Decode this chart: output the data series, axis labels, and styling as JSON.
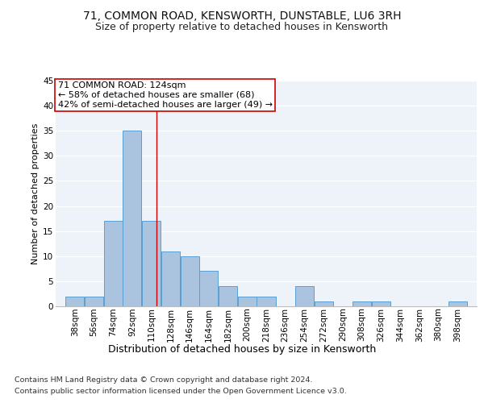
{
  "title1": "71, COMMON ROAD, KENSWORTH, DUNSTABLE, LU6 3RH",
  "title2": "Size of property relative to detached houses in Kensworth",
  "xlabel": "Distribution of detached houses by size in Kensworth",
  "ylabel": "Number of detached properties",
  "footnote1": "Contains HM Land Registry data © Crown copyright and database right 2024.",
  "footnote2": "Contains public sector information licensed under the Open Government Licence v3.0.",
  "bin_labels": [
    "38sqm",
    "56sqm",
    "74sqm",
    "92sqm",
    "110sqm",
    "128sqm",
    "146sqm",
    "164sqm",
    "182sqm",
    "200sqm",
    "218sqm",
    "236sqm",
    "254sqm",
    "272sqm",
    "290sqm",
    "308sqm",
    "326sqm",
    "344sqm",
    "362sqm",
    "380sqm",
    "398sqm"
  ],
  "bin_edges": [
    38,
    56,
    74,
    92,
    110,
    128,
    146,
    164,
    182,
    200,
    218,
    236,
    254,
    272,
    290,
    308,
    326,
    344,
    362,
    380,
    398,
    416
  ],
  "counts": [
    2,
    2,
    17,
    35,
    17,
    11,
    10,
    7,
    4,
    2,
    2,
    0,
    4,
    1,
    0,
    1,
    1,
    0,
    0,
    0,
    1
  ],
  "bar_color": "#aac4e0",
  "bar_edge_color": "#5a9fd4",
  "background_color": "#eef3f9",
  "grid_color": "#ffffff",
  "vline_x": 124,
  "vline_color": "#cc0000",
  "annotation_line1": "71 COMMON ROAD: 124sqm",
  "annotation_line2": "← 58% of detached houses are smaller (68)",
  "annotation_line3": "42% of semi-detached houses are larger (49) →",
  "annotation_box_color": "#cc0000",
  "ylim": [
    0,
    45
  ],
  "yticks": [
    0,
    5,
    10,
    15,
    20,
    25,
    30,
    35,
    40,
    45
  ],
  "title1_fontsize": 10,
  "title2_fontsize": 9,
  "ylabel_fontsize": 8,
  "xlabel_fontsize": 9,
  "tick_fontsize": 7.5,
  "annotation_fontsize": 8,
  "footnote_fontsize": 6.8
}
